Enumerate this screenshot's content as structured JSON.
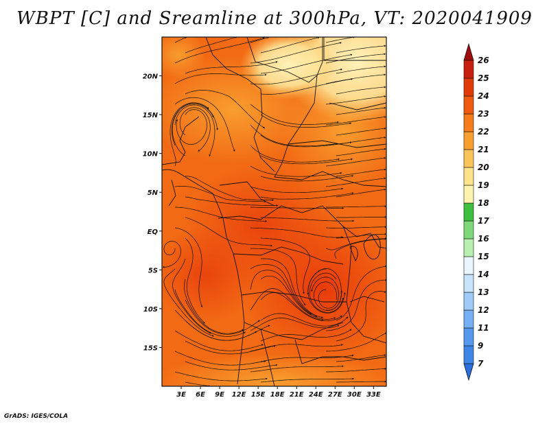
{
  "title": "WBPT [C] and Sreamline at 300hPa, VT: 2020041909",
  "footer": "GrADS: IGES/COLA",
  "map": {
    "lon_range": [
      0,
      35
    ],
    "lat_range": [
      -20,
      25
    ],
    "x_ticks": [
      {
        "value": 3,
        "label": "3E"
      },
      {
        "value": 6,
        "label": "6E"
      },
      {
        "value": 9,
        "label": "9E"
      },
      {
        "value": 12,
        "label": "12E"
      },
      {
        "value": 15,
        "label": "15E"
      },
      {
        "value": 18,
        "label": "18E"
      },
      {
        "value": 21,
        "label": "21E"
      },
      {
        "value": 24,
        "label": "24E"
      },
      {
        "value": 27,
        "label": "27E"
      },
      {
        "value": 30,
        "label": "30E"
      },
      {
        "value": 33,
        "label": "33E"
      }
    ],
    "y_ticks": [
      {
        "value": 20,
        "label": "20N"
      },
      {
        "value": 15,
        "label": "15N"
      },
      {
        "value": 10,
        "label": "10N"
      },
      {
        "value": 5,
        "label": "5N"
      },
      {
        "value": 0,
        "label": "EQ"
      },
      {
        "value": -5,
        "label": "5S"
      },
      {
        "value": -10,
        "label": "10S"
      },
      {
        "value": -15,
        "label": "15S"
      }
    ]
  },
  "colorbar": {
    "levels": [
      "7",
      "9",
      "11",
      "12",
      "13",
      "14",
      "15",
      "16",
      "17",
      "18",
      "19",
      "20",
      "21",
      "22",
      "23",
      "24",
      "25",
      "26"
    ],
    "colors": [
      "#2a6fdb",
      "#3d85e6",
      "#5599ee",
      "#75b0f4",
      "#9ecbf8",
      "#c6e3fb",
      "#eaf6ff",
      "#b8f0b0",
      "#7ed87a",
      "#3fbf3f",
      "#fff3b0",
      "#fde38a",
      "#fbc45a",
      "#f9a030",
      "#f57c1a",
      "#ef5a10",
      "#e03a08",
      "#c82010",
      "#a00d0d"
    ]
  }
}
